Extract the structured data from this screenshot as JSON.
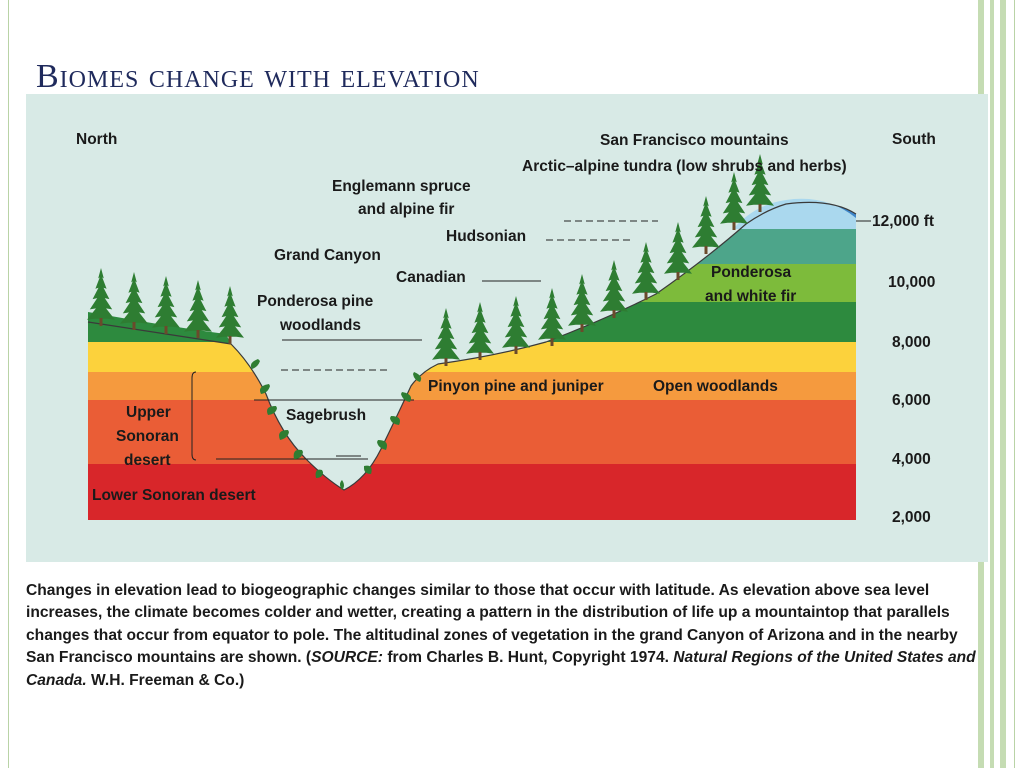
{
  "title": "Biomes change with elevation",
  "diagram": {
    "north": "North",
    "south": "South",
    "mountain_name": "San Francisco mountains",
    "tundra": "Arctic–alpine tundra (low shrubs and herbs)",
    "engelmann_1": "Englemann spruce",
    "engelmann_2": "and alpine fir",
    "hudsonian": "Hudsonian",
    "grand_canyon": "Grand Canyon",
    "canadian": "Canadian",
    "ponderosa_woodlands_1": "Ponderosa pine",
    "ponderosa_woodlands_2": "woodlands",
    "ponderosa_white_1": "Ponderosa",
    "ponderosa_white_2": "and white fir",
    "sagebrush": "Sagebrush",
    "pinyon": "Pinyon pine and juniper",
    "open_woodlands": "Open woodlands",
    "upper_1": "Upper",
    "upper_2": "Sonoran",
    "upper_3": "desert",
    "lower": "Lower Sonoran desert",
    "elevations": [
      "12,000 ft",
      "10,000",
      "8,000",
      "6,000",
      "4,000",
      "2,000"
    ],
    "colors": {
      "background": "#d8eae6",
      "lower_sonoran": "#d8262a",
      "upper_sonoran": "#ea5d36",
      "pinyon": "#f59a3e",
      "ponderosa": "#fcd23c",
      "canadian": "#2d8a3e",
      "hudsonian": "#7dbb3b",
      "engelmann": "#4da58a",
      "tundra": "#3f86c8",
      "snow": "#aad8ee",
      "tree": "#2e7d32"
    }
  },
  "caption": {
    "part1": "Changes in elevation lead to biogeographic changes similar to those that occur with latitude.  As elevation above sea level increases, the climate becomes colder and wetter, creating a pattern in the distribution of life up a mountaintop that parallels changes that occur from equator to pole.  The altitudinal zones of vegetation in the grand Canyon of Arizona and in the nearby San Francisco mountains are shown.  (",
    "source_label": "SOURCE:",
    "part2": " from Charles B. Hunt, Copyright 1974.  ",
    "book": "Natural Regions of the United States and Canada.",
    "part3": "  W.H. Freeman & Co.)"
  }
}
